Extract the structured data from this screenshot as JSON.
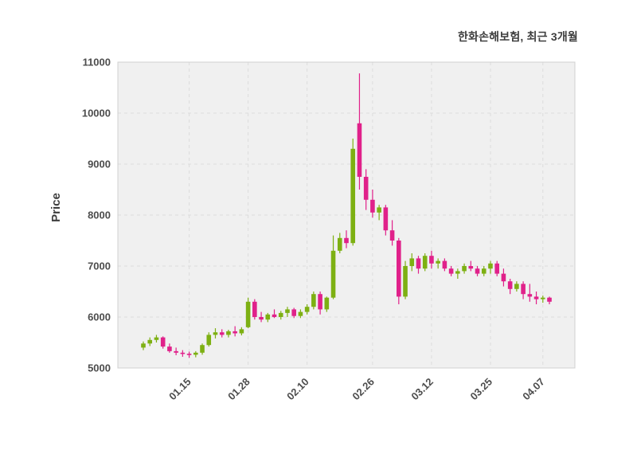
{
  "header": {
    "title": "한화손해보험, 최근 3개월"
  },
  "chart_data": {
    "type": "candlestick",
    "title": "한화손해보험, 최근 3개월",
    "ylabel": "Price",
    "ylim": [
      5000,
      11000
    ],
    "yticks": [
      5000,
      6000,
      7000,
      8000,
      9000,
      10000,
      11000
    ],
    "xtick_labels": [
      "01.15",
      "01.28",
      "02.10",
      "02.26",
      "03.12",
      "03.25",
      "04.07"
    ],
    "xtick_indices": [
      7,
      16,
      25,
      35,
      44,
      53,
      61
    ],
    "grid": "dashed",
    "legend": "none",
    "colors": {
      "up": "#7db012",
      "down": "#e0218a",
      "plot_bg": "#f0f0f0",
      "grid": "#dcdcdc",
      "border": "#d0d0d0",
      "text": "#4d4d4d"
    },
    "candle_order": "open,high,low,close",
    "candles": [
      [
        5400,
        5520,
        5350,
        5480
      ],
      [
        5480,
        5600,
        5430,
        5550
      ],
      [
        5550,
        5650,
        5500,
        5600
      ],
      [
        5600,
        5620,
        5380,
        5420
      ],
      [
        5420,
        5480,
        5300,
        5330
      ],
      [
        5330,
        5400,
        5250,
        5300
      ],
      [
        5300,
        5350,
        5220,
        5280
      ],
      [
        5280,
        5320,
        5200,
        5260
      ],
      [
        5260,
        5330,
        5210,
        5300
      ],
      [
        5300,
        5480,
        5260,
        5450
      ],
      [
        5450,
        5700,
        5420,
        5650
      ],
      [
        5650,
        5780,
        5580,
        5700
      ],
      [
        5700,
        5760,
        5600,
        5650
      ],
      [
        5650,
        5750,
        5600,
        5720
      ],
      [
        5720,
        5820,
        5620,
        5680
      ],
      [
        5680,
        5800,
        5640,
        5760
      ],
      [
        5800,
        6380,
        5780,
        6300
      ],
      [
        6300,
        6350,
        5950,
        6000
      ],
      [
        6000,
        6100,
        5900,
        5950
      ],
      [
        5950,
        6080,
        5900,
        6050
      ],
      [
        6050,
        6150,
        5980,
        6000
      ],
      [
        6000,
        6120,
        5950,
        6080
      ],
      [
        6080,
        6200,
        6000,
        6150
      ],
      [
        6150,
        6180,
        5980,
        6020
      ],
      [
        6020,
        6150,
        5980,
        6100
      ],
      [
        6100,
        6250,
        6050,
        6200
      ],
      [
        6200,
        6500,
        6150,
        6450
      ],
      [
        6450,
        6500,
        6050,
        6150
      ],
      [
        6150,
        6400,
        6100,
        6380
      ],
      [
        6380,
        7600,
        6350,
        7300
      ],
      [
        7300,
        7650,
        7250,
        7550
      ],
      [
        7550,
        7700,
        7350,
        7450
      ],
      [
        7450,
        9500,
        7400,
        9300
      ],
      [
        9800,
        10780,
        8500,
        8750
      ],
      [
        8750,
        8900,
        8100,
        8300
      ],
      [
        8300,
        8500,
        7950,
        8050
      ],
      [
        8050,
        8200,
        7900,
        8150
      ],
      [
        8150,
        8200,
        7600,
        7700
      ],
      [
        7700,
        7900,
        7400,
        7500
      ],
      [
        7500,
        7550,
        6250,
        6400
      ],
      [
        6400,
        7100,
        6350,
        7000
      ],
      [
        7000,
        7250,
        6900,
        7150
      ],
      [
        7150,
        7200,
        6850,
        6950
      ],
      [
        6950,
        7250,
        6900,
        7200
      ],
      [
        7200,
        7300,
        6950,
        7050
      ],
      [
        7050,
        7150,
        6950,
        7100
      ],
      [
        7100,
        7150,
        6900,
        6950
      ],
      [
        6950,
        7000,
        6800,
        6850
      ],
      [
        6850,
        6950,
        6750,
        6900
      ],
      [
        6900,
        7050,
        6850,
        7000
      ],
      [
        7000,
        7100,
        6900,
        6950
      ],
      [
        6950,
        7000,
        6800,
        6850
      ],
      [
        6850,
        7000,
        6800,
        6950
      ],
      [
        6950,
        7100,
        6850,
        7050
      ],
      [
        7050,
        7100,
        6800,
        6850
      ],
      [
        6850,
        6950,
        6600,
        6700
      ],
      [
        6700,
        6750,
        6450,
        6550
      ],
      [
        6550,
        6700,
        6500,
        6650
      ],
      [
        6650,
        6700,
        6350,
        6450
      ],
      [
        6450,
        6650,
        6300,
        6400
      ],
      [
        6400,
        6500,
        6250,
        6350
      ],
      [
        6350,
        6420,
        6280,
        6380
      ],
      [
        6380,
        6400,
        6250,
        6300
      ]
    ]
  }
}
